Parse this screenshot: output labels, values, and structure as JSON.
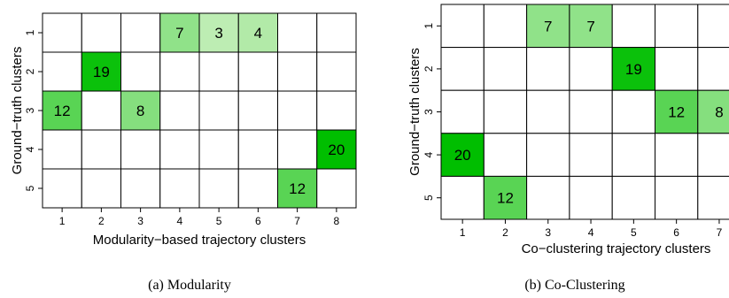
{
  "chart_data": [
    {
      "type": "heatmap",
      "caption": "(a) Modularity",
      "xlabel": "Modularity−based trajectory clusters",
      "ylabel": "Ground−truth clusters",
      "x_ticks": [
        "1",
        "2",
        "3",
        "4",
        "5",
        "6",
        "7",
        "8"
      ],
      "y_ticks": [
        "1",
        "2",
        "3",
        "4",
        "5"
      ],
      "max_value": 20,
      "values": [
        [
          null,
          null,
          null,
          7,
          3,
          4,
          null,
          null
        ],
        [
          null,
          19,
          null,
          null,
          null,
          null,
          null,
          null
        ],
        [
          12,
          null,
          8,
          null,
          null,
          null,
          null,
          null
        ],
        [
          null,
          null,
          null,
          null,
          null,
          null,
          null,
          20
        ],
        [
          null,
          null,
          null,
          null,
          null,
          null,
          12,
          null
        ]
      ]
    },
    {
      "type": "heatmap",
      "caption": "(b) Co-Clustering",
      "xlabel": "Co−clustering trajectory clusters",
      "ylabel": "Ground−truth clusters",
      "x_ticks": [
        "1",
        "2",
        "3",
        "4",
        "5",
        "6",
        "7"
      ],
      "y_ticks": [
        "1",
        "2",
        "3",
        "4",
        "5"
      ],
      "max_value": 20,
      "values": [
        [
          null,
          null,
          7,
          7,
          null,
          null,
          null
        ],
        [
          null,
          null,
          null,
          null,
          19,
          null,
          null
        ],
        [
          null,
          null,
          null,
          null,
          null,
          12,
          8
        ],
        [
          20,
          null,
          null,
          null,
          null,
          null,
          null
        ],
        [
          null,
          12,
          null,
          null,
          null,
          null,
          null
        ]
      ]
    }
  ]
}
